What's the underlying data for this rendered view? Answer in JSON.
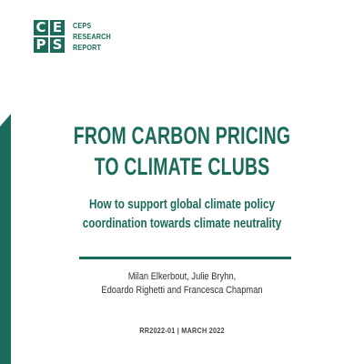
{
  "logo": {
    "letters": [
      "C",
      "E",
      "P",
      "S"
    ],
    "color": "#1b6b5a"
  },
  "series": {
    "lines": [
      "CEPS",
      "RESEARCH",
      "REPORT"
    ]
  },
  "title": {
    "lines": [
      "FROM CARBON PRICING",
      "TO CLIMATE CLUBS"
    ]
  },
  "subtitle": {
    "lines": [
      "How to support global climate policy",
      "coordination towards climate neutrality"
    ]
  },
  "authors": {
    "lines": [
      "Milan Elkerbout, Julie Bryhn,",
      "Edoardo Righetti and Francesca Chapman"
    ]
  },
  "report": {
    "code": "RR2022-01 | MARCH 2022"
  },
  "colors": {
    "accent": "#1b6b5a"
  }
}
